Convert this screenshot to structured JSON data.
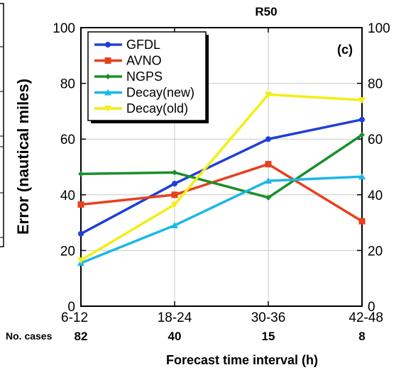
{
  "chart_data": {
    "type": "line",
    "title": "R50",
    "panel_label": "(c)",
    "xlabel": "Forecast time interval (h)",
    "ylabel": "Error (nautical miles)",
    "categories": [
      "6-12",
      "18-24",
      "30-36",
      "42-48"
    ],
    "ylim": [
      0,
      100
    ],
    "yticks": [
      "0",
      "20",
      "40",
      "60",
      "80",
      "100"
    ],
    "grid": true,
    "legend_position": "top-left",
    "cases_label": "No. cases",
    "cases": [
      "82",
      "40",
      "15",
      "8"
    ],
    "series": [
      {
        "name": "GFDL",
        "color": "#1f3fd6",
        "marker": "circle",
        "values": [
          26,
          44,
          60,
          67
        ]
      },
      {
        "name": "AVNO",
        "color": "#e8401c",
        "marker": "square",
        "values": [
          36.5,
          40,
          51,
          30.5
        ]
      },
      {
        "name": "NGPS",
        "color": "#1a8f2a",
        "marker": "diamond",
        "values": [
          47.5,
          48,
          39,
          61.5
        ]
      },
      {
        "name": "Decay(new)",
        "color": "#1cb8e6",
        "marker": "triangle",
        "values": [
          15.5,
          29,
          45,
          46.5
        ]
      },
      {
        "name": "Decay(old)",
        "color": "#f4ee14",
        "marker": "triangle-down",
        "values": [
          16.5,
          36.5,
          76,
          74
        ]
      }
    ]
  }
}
